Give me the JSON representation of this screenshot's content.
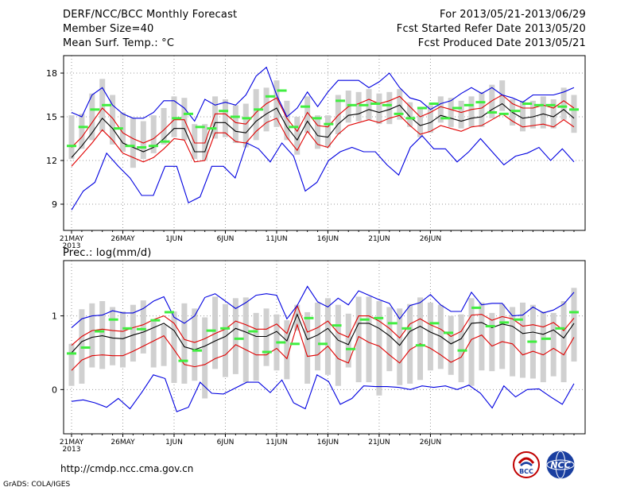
{
  "header": {
    "title": "DERF/NCC/BCC Monthly Forecast",
    "member_size": "Member Size=40",
    "variable": "Mean Surf. Temp.: °C",
    "for_period": "For 2013/05/21-2013/06/29",
    "started": "Fcst Started Refer Date 2013/05/20",
    "produced": "Fcst Produced Date 2013/05/21"
  },
  "footer": {
    "url": "http://cmdp.ncc.cma.gov.cn",
    "grads": "GrADS: COLA/IGES",
    "logo_bcc": "BCC",
    "logo_ncc": "NCC"
  },
  "colors": {
    "ensemble_mean": "#000000",
    "std_bounds": "#e00000",
    "min_max": "#0000e0",
    "mode_marker": "#40ee40",
    "box": "#d0d0d0"
  },
  "chart_data": [
    {
      "type": "line",
      "title": "Mean Surf. Temp.: °C",
      "xlabels": [
        "21MAY",
        "26MAY",
        "1JUN",
        "6JUN",
        "11JUN",
        "16JUN",
        "21JUN",
        "26JUN"
      ],
      "xyear": "2013",
      "ylim": [
        7.2,
        19.2
      ],
      "yticks": [
        9,
        12,
        15,
        18
      ],
      "ytick_labels": [
        "9",
        "12",
        "15",
        "18"
      ],
      "grid": true,
      "series": [
        {
          "name": "ensemble_mean",
          "color": "black",
          "values": [
            12.2,
            13.0,
            13.9,
            14.9,
            14.2,
            13.2,
            12.9,
            12.6,
            12.9,
            13.5,
            14.2,
            14.2,
            12.6,
            12.6,
            14.6,
            14.6,
            14.0,
            13.9,
            14.7,
            15.2,
            15.6,
            14.3,
            13.4,
            14.7,
            13.7,
            13.6,
            14.5,
            15.1,
            15.2,
            15.5,
            15.3,
            15.5,
            15.8,
            15.0,
            14.4,
            14.6,
            15.1,
            14.9,
            14.7,
            14.9,
            15.0,
            15.5,
            15.9,
            15.3,
            14.9,
            15.0,
            15.2,
            15.0,
            15.5,
            14.9
          ]
        },
        {
          "name": "upper",
          "color": "red",
          "values": [
            12.9,
            13.6,
            14.6,
            15.6,
            14.9,
            13.9,
            13.5,
            13.2,
            13.5,
            14.1,
            14.8,
            14.8,
            13.2,
            13.2,
            15.2,
            15.2,
            14.6,
            14.5,
            15.3,
            15.9,
            16.3,
            14.9,
            14.0,
            15.3,
            14.4,
            14.3,
            15.1,
            15.7,
            15.9,
            16.2,
            15.9,
            16.1,
            16.4,
            15.7,
            15.0,
            15.3,
            15.7,
            15.5,
            15.3,
            15.5,
            15.6,
            16.1,
            16.5,
            15.9,
            15.6,
            15.6,
            15.8,
            15.6,
            16.1,
            15.6
          ]
        },
        {
          "name": "lower",
          "color": "red",
          "values": [
            11.6,
            12.4,
            13.2,
            14.1,
            13.4,
            12.5,
            12.2,
            11.9,
            12.2,
            12.8,
            13.5,
            13.4,
            11.9,
            12.0,
            13.9,
            13.9,
            13.3,
            13.2,
            14.0,
            14.6,
            14.9,
            13.6,
            12.7,
            14.0,
            13.1,
            12.9,
            13.8,
            14.4,
            14.6,
            14.8,
            14.6,
            14.9,
            15.1,
            14.4,
            13.8,
            14.0,
            14.4,
            14.2,
            14.0,
            14.3,
            14.4,
            14.8,
            15.2,
            14.7,
            14.3,
            14.4,
            14.5,
            14.3,
            14.8,
            14.3
          ]
        },
        {
          "name": "maximum",
          "color": "blue",
          "values": [
            15.3,
            15.0,
            16.5,
            17.0,
            15.8,
            15.2,
            14.9,
            14.9,
            15.3,
            16.1,
            16.1,
            15.6,
            14.7,
            16.2,
            15.8,
            16.0,
            15.8,
            16.5,
            17.8,
            18.4,
            16.5,
            15.0,
            15.6,
            16.7,
            15.7,
            16.7,
            17.5,
            17.5,
            17.5,
            17.0,
            17.4,
            18.0,
            17.0,
            16.3,
            16.1,
            15.5,
            15.9,
            16.1,
            16.6,
            17.0,
            16.6,
            17.0,
            16.5,
            16.3,
            16.0,
            16.5,
            16.5,
            16.5,
            16.7,
            17.0
          ]
        },
        {
          "name": "minimum",
          "color": "blue",
          "values": [
            8.6,
            9.9,
            10.5,
            12.5,
            11.6,
            10.8,
            9.6,
            9.6,
            11.6,
            11.6,
            9.1,
            9.5,
            11.6,
            11.6,
            10.8,
            13.2,
            12.8,
            11.9,
            13.2,
            12.3,
            9.9,
            10.5,
            12.0,
            12.6,
            12.9,
            12.6,
            12.6,
            11.7,
            11.0,
            12.9,
            13.7,
            12.8,
            12.8,
            11.9,
            12.6,
            13.5,
            12.6,
            11.7,
            12.3,
            12.5,
            12.9,
            12.0,
            12.8,
            11.9
          ]
        },
        {
          "name": "mode",
          "color": "green",
          "values": [
            13.0,
            14.3,
            15.5,
            15.8,
            14.2,
            13.0,
            12.9,
            13.0,
            13.3,
            14.9,
            15.2,
            14.3,
            14.2,
            15.4,
            15.0,
            14.9,
            15.5,
            16.4,
            16.8,
            14.3,
            15.7,
            14.9,
            14.5,
            16.1,
            15.8,
            15.8,
            15.9,
            15.8,
            15.2,
            14.9,
            15.6,
            15.9,
            14.9,
            15.6,
            15.8,
            16.0,
            15.3,
            15.2,
            15.4,
            15.9,
            15.8,
            15.8,
            15.7,
            15.5
          ]
        }
      ],
      "boxes": {
        "lo": [
          12.1,
          12.8,
          13.4,
          14.0,
          13.1,
          12.6,
          11.5,
          12.1,
          12.5,
          13.1,
          13.6,
          13.4,
          12.1,
          12.0,
          13.5,
          13.6,
          13.2,
          12.9,
          13.4,
          14.0,
          14.3,
          13.4,
          12.4,
          13.9,
          12.8,
          12.9,
          13.8,
          14.6,
          14.7,
          14.8,
          14.5,
          14.5,
          14.8,
          14.3,
          13.6,
          13.9,
          14.6,
          14.3,
          14.2,
          14.3,
          14.3,
          14.9,
          15.4,
          14.4,
          14.0,
          14.2,
          14.2,
          14.2,
          14.8,
          13.9
        ],
        "hi": [
          15.1,
          15.2,
          16.6,
          17.6,
          16.5,
          15.3,
          14.9,
          14.7,
          15.1,
          15.6,
          16.4,
          16.3,
          14.5,
          14.5,
          16.4,
          16.2,
          15.8,
          15.9,
          16.9,
          17.0,
          17.5,
          16.1,
          15.0,
          16.4,
          15.1,
          15.1,
          16.5,
          16.8,
          16.7,
          16.9,
          16.6,
          16.7,
          16.9,
          16.0,
          15.6,
          15.8,
          16.4,
          16.3,
          16.1,
          16.4,
          16.7,
          17.2,
          17.5,
          16.2,
          16.1,
          16.1,
          16.4,
          16.2,
          17.0,
          16.5
        ]
      }
    },
    {
      "type": "line",
      "title": "Prec.: log(mm/d)",
      "xlabels": [
        "21MAY",
        "26MAY",
        "1JUN",
        "6JUN",
        "11JUN",
        "16JUN",
        "21JUN",
        "26JUN"
      ],
      "xyear": "2013",
      "ylim": [
        -0.6,
        1.75
      ],
      "yticks": [
        0,
        1
      ],
      "ytick_labels": [
        "0",
        "1"
      ],
      "grid": true,
      "series": [
        {
          "name": "ensemble_mean",
          "color": "black",
          "values": [
            0.5,
            0.65,
            0.71,
            0.73,
            0.7,
            0.69,
            0.74,
            0.78,
            0.84,
            0.9,
            0.8,
            0.58,
            0.54,
            0.59,
            0.66,
            0.72,
            0.83,
            0.78,
            0.72,
            0.72,
            0.79,
            0.66,
            1.02,
            0.68,
            0.74,
            0.83,
            0.67,
            0.61,
            0.9,
            0.9,
            0.83,
            0.73,
            0.6,
            0.79,
            0.86,
            0.78,
            0.72,
            0.62,
            0.69,
            0.9,
            0.91,
            0.84,
            0.89,
            0.86,
            0.76,
            0.78,
            0.75,
            0.81,
            0.7,
            0.9
          ]
        },
        {
          "name": "upper",
          "color": "red",
          "values": [
            0.6,
            0.72,
            0.8,
            0.82,
            0.8,
            0.79,
            0.84,
            0.88,
            0.95,
            1.0,
            0.9,
            0.68,
            0.64,
            0.69,
            0.76,
            0.82,
            0.93,
            0.88,
            0.82,
            0.82,
            0.89,
            0.76,
            1.14,
            0.78,
            0.84,
            0.93,
            0.77,
            0.71,
            1.0,
            1.0,
            0.93,
            0.83,
            0.7,
            0.89,
            0.96,
            0.88,
            0.82,
            0.72,
            0.79,
            1.01,
            1.02,
            0.94,
            0.99,
            0.96,
            0.86,
            0.88,
            0.85,
            0.91,
            0.8,
            0.97
          ]
        },
        {
          "name": "lower",
          "color": "red",
          "values": [
            0.26,
            0.4,
            0.46,
            0.47,
            0.46,
            0.46,
            0.52,
            0.59,
            0.66,
            0.73,
            0.54,
            0.34,
            0.31,
            0.34,
            0.42,
            0.47,
            0.61,
            0.54,
            0.47,
            0.47,
            0.56,
            0.42,
            0.88,
            0.45,
            0.47,
            0.59,
            0.42,
            0.36,
            0.72,
            0.64,
            0.59,
            0.47,
            0.36,
            0.54,
            0.62,
            0.56,
            0.47,
            0.37,
            0.44,
            0.68,
            0.74,
            0.59,
            0.65,
            0.62,
            0.47,
            0.52,
            0.47,
            0.56,
            0.47,
            0.71
          ]
        },
        {
          "name": "maximum",
          "color": "blue",
          "values": [
            0.84,
            0.96,
            1.0,
            1.01,
            1.07,
            1.04,
            1.04,
            1.1,
            1.2,
            1.26,
            0.98,
            0.9,
            1.0,
            1.25,
            1.3,
            1.2,
            1.1,
            1.18,
            1.28,
            1.3,
            1.28,
            0.96,
            1.14,
            1.4,
            1.19,
            1.12,
            1.24,
            1.15,
            1.34,
            1.28,
            1.22,
            1.17,
            0.96,
            1.14,
            1.18,
            1.29,
            1.15,
            1.06,
            1.06,
            1.32,
            1.15,
            1.17,
            1.17,
            1.0,
            1.01,
            1.12,
            1.04,
            1.08,
            1.16,
            1.32
          ]
        },
        {
          "name": "minimum",
          "color": "blue",
          "values": [
            -0.16,
            -0.14,
            -0.18,
            -0.24,
            -0.12,
            -0.26,
            -0.04,
            0.2,
            0.15,
            -0.3,
            -0.24,
            0.1,
            -0.05,
            -0.06,
            0.02,
            0.1,
            0.1,
            -0.04,
            0.13,
            -0.18,
            -0.26,
            0.2,
            0.11,
            -0.2,
            -0.12,
            0.05,
            0.04,
            0.04,
            0.03,
            0.0,
            0.05,
            0.03,
            0.05,
            0.0,
            0.06,
            -0.05,
            -0.25,
            0.05,
            -0.1,
            0.0,
            0.01,
            -0.1,
            -0.2,
            0.08
          ]
        },
        {
          "name": "mode",
          "color": "green",
          "values": [
            0.49,
            0.57,
            0.79,
            0.95,
            0.83,
            0.82,
            0.94,
            1.05,
            0.39,
            0.53,
            0.8,
            0.83,
            0.69,
            0.79,
            0.51,
            0.64,
            0.62,
            0.97,
            0.62,
            0.87,
            0.55,
            0.95,
            0.97,
            0.9,
            0.83,
            0.6,
            0.9,
            0.77,
            0.53,
            1.11,
            0.86,
            0.91,
            0.95,
            0.65,
            0.69,
            0.83,
            1.05
          ]
        }
      ],
      "boxes": {
        "lo": [
          0.05,
          0.08,
          0.3,
          0.28,
          0.33,
          0.3,
          0.38,
          0.49,
          0.3,
          0.32,
          0.09,
          0.08,
          0.12,
          -0.12,
          0.28,
          0.17,
          0.21,
          0.1,
          0.12,
          0.32,
          0.26,
          0.14,
          0.8,
          0.08,
          0.26,
          0.2,
          0.05,
          0.3,
          0.1,
          0.1,
          -0.08,
          0.25,
          0.06,
          0.08,
          0.13,
          0.26,
          0.28,
          0.2,
          0.1,
          0.05,
          0.26,
          0.25,
          0.28,
          0.18,
          0.16,
          0.15,
          0.1,
          0.18,
          0.1,
          0.38
        ],
        "hi": [
          0.62,
          1.09,
          1.17,
          1.2,
          1.12,
          1.06,
          1.15,
          1.21,
          0.95,
          0.88,
          1.06,
          1.17,
          1.1,
          0.98,
          1.26,
          1.16,
          1.24,
          1.25,
          1.04,
          1.1,
          1.02,
          0.94,
          1.15,
          1.05,
          1.18,
          1.24,
          1.15,
          1.03,
          1.26,
          1.26,
          1.2,
          1.12,
          1.1,
          1.16,
          1.25,
          1.18,
          1.15,
          1.0,
          1.02,
          1.24,
          1.18,
          1.04,
          1.16,
          1.12,
          1.18,
          1.15,
          1.06,
          1.04,
          1.2,
          1.38
        ]
      }
    }
  ]
}
